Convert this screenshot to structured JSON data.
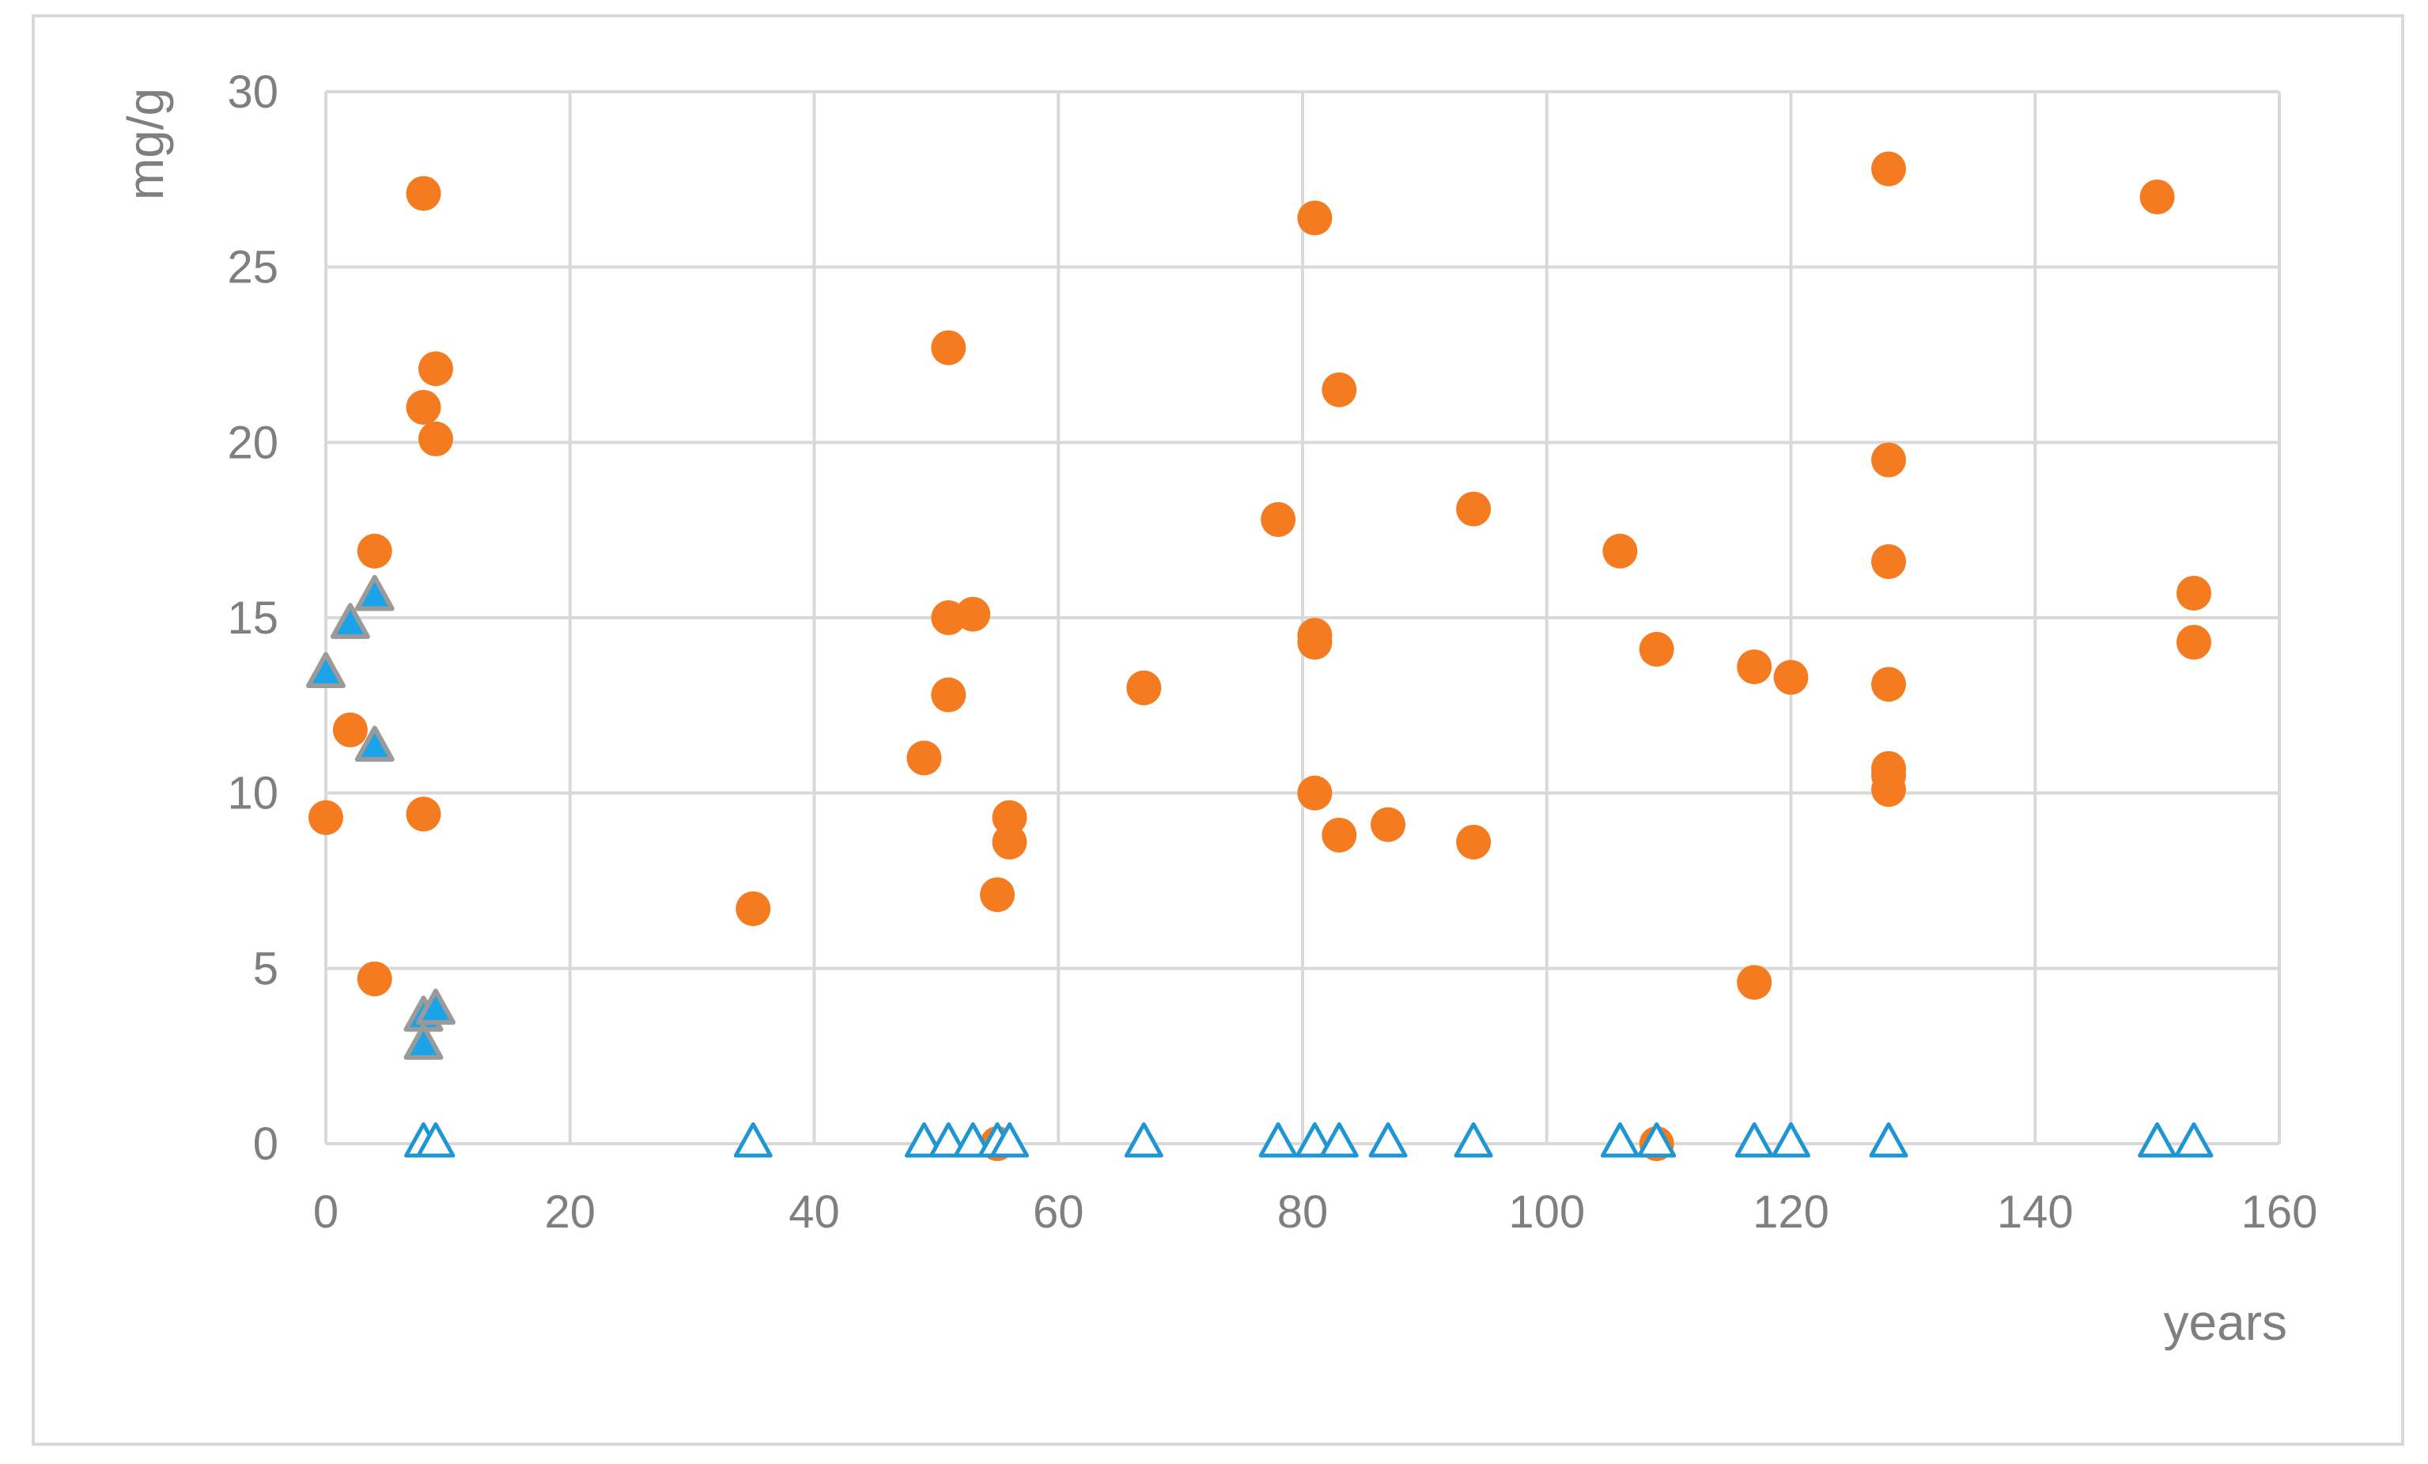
{
  "chart_data": {
    "type": "scatter",
    "title": "",
    "xlabel": "years",
    "ylabel": "mg/g",
    "xlim": [
      0,
      160
    ],
    "ylim": [
      0,
      30
    ],
    "x_ticks": [
      0,
      20,
      40,
      60,
      80,
      100,
      120,
      140,
      160
    ],
    "y_ticks": [
      0,
      5,
      10,
      15,
      20,
      25,
      30
    ],
    "grid": true,
    "legend": "none",
    "colors": {
      "orange_circle": "#f47b20",
      "blue_fill_triangle": "#1aa3e8",
      "blue_fill_triangle_edge": "#9a9a9a",
      "open_triangle_edge": "#1f96d4",
      "grid": "#d9d9d9",
      "text": "#7f7f7f"
    },
    "series": [
      {
        "marker": "orange-circle",
        "points": [
          [
            0,
            9.3
          ],
          [
            2,
            11.8
          ],
          [
            4,
            16.9
          ],
          [
            4,
            4.7
          ],
          [
            8,
            27.1
          ],
          [
            8,
            21.0
          ],
          [
            8,
            9.4
          ],
          [
            9,
            22.1
          ],
          [
            9,
            20.1
          ],
          [
            35,
            6.7
          ],
          [
            49,
            11.0
          ],
          [
            51,
            22.7
          ],
          [
            51,
            15.0
          ],
          [
            51,
            12.8
          ],
          [
            53,
            15.1
          ],
          [
            55,
            7.1
          ],
          [
            55,
            0.0
          ],
          [
            56,
            9.3
          ],
          [
            56,
            8.6
          ],
          [
            67,
            13.0
          ],
          [
            78,
            17.8
          ],
          [
            81,
            26.4
          ],
          [
            81,
            14.5
          ],
          [
            81,
            14.3
          ],
          [
            81,
            10.0
          ],
          [
            83,
            21.5
          ],
          [
            83,
            8.8
          ],
          [
            87,
            9.1
          ],
          [
            94,
            18.1
          ],
          [
            94,
            8.6
          ],
          [
            106,
            16.9
          ],
          [
            109,
            14.1
          ],
          [
            109,
            0.0
          ],
          [
            117,
            13.6
          ],
          [
            117,
            4.6
          ],
          [
            120,
            13.3
          ],
          [
            128,
            27.8
          ],
          [
            128,
            19.5
          ],
          [
            128,
            16.6
          ],
          [
            128,
            13.1
          ],
          [
            128,
            10.7
          ],
          [
            128,
            10.5
          ],
          [
            128,
            10.1
          ],
          [
            150,
            27.0
          ],
          [
            153,
            15.7
          ],
          [
            153,
            14.3
          ]
        ]
      },
      {
        "marker": "blue-filled-triangle",
        "points": [
          [
            0,
            13.4
          ],
          [
            2,
            14.8
          ],
          [
            4,
            15.6
          ],
          [
            4,
            11.3
          ],
          [
            8,
            3.6
          ],
          [
            8,
            2.8
          ],
          [
            9,
            3.8
          ]
        ]
      },
      {
        "marker": "blue-open-triangle",
        "points": [
          [
            8,
            0
          ],
          [
            9,
            0
          ],
          [
            35,
            0
          ],
          [
            49,
            0
          ],
          [
            51,
            0
          ],
          [
            53,
            0
          ],
          [
            55,
            0
          ],
          [
            56,
            0
          ],
          [
            67,
            0
          ],
          [
            78,
            0
          ],
          [
            81,
            0
          ],
          [
            83,
            0
          ],
          [
            87,
            0
          ],
          [
            94,
            0
          ],
          [
            106,
            0
          ],
          [
            109,
            0
          ],
          [
            117,
            0
          ],
          [
            120,
            0
          ],
          [
            128,
            0
          ],
          [
            150,
            0
          ],
          [
            153,
            0
          ]
        ]
      }
    ]
  }
}
